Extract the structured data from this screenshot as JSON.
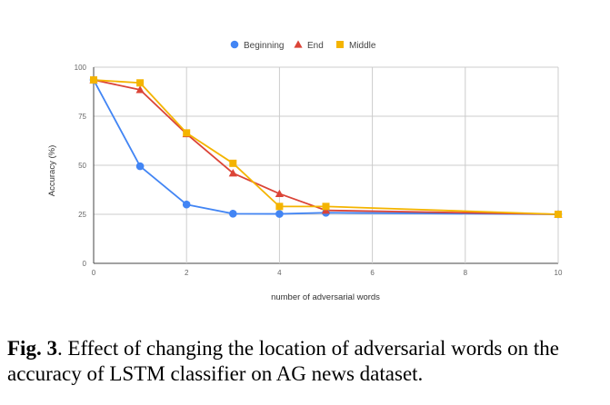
{
  "chart_data": {
    "type": "line",
    "title": "",
    "xlabel": "number of adversarial words",
    "ylabel": "Accuracy (%)",
    "xlim": [
      0,
      10
    ],
    "ylim": [
      0,
      100
    ],
    "x_ticks": [
      "0",
      "2",
      "4",
      "6",
      "8",
      "10"
    ],
    "y_ticks": [
      "0",
      "25",
      "50",
      "75",
      "100"
    ],
    "grid": true,
    "legend_position": "top-center",
    "series": [
      {
        "name": "Beginning",
        "color": "#4285F4",
        "marker": "circle",
        "x": [
          0,
          1,
          2,
          3,
          4,
          5,
          10
        ],
        "values": [
          93.5,
          49.5,
          30,
          25.3,
          25.2,
          25.8,
          25
        ]
      },
      {
        "name": "End",
        "color": "#DB4437",
        "marker": "triangle",
        "x": [
          0,
          1,
          2,
          3,
          4,
          5,
          10
        ],
        "values": [
          93.5,
          88.5,
          66,
          46,
          35.5,
          27,
          25
        ]
      },
      {
        "name": "Middle",
        "color": "#F4B400",
        "marker": "square",
        "x": [
          0,
          1,
          2,
          3,
          4,
          5,
          10
        ],
        "values": [
          93.5,
          92,
          66.5,
          51,
          29,
          29,
          25
        ]
      }
    ]
  },
  "caption": {
    "label": "Fig. 3",
    "text": ". Effect of changing the location of adversarial words on the accuracy of LSTM classifier on AG news dataset."
  }
}
